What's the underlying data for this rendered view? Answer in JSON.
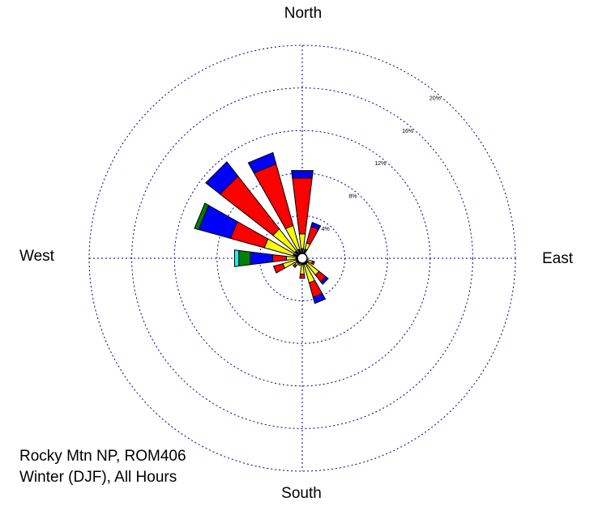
{
  "caption": {
    "station": "Rocky Mtn NP, ROM406",
    "season": "Winter (DJF), All Hours"
  },
  "colors": {
    "grid": "#00008b",
    "outline": "#000000",
    "bins": [
      "#000000",
      "#ffff00",
      "#ff0000",
      "#0000ff",
      "#008000",
      "#00ffff"
    ]
  },
  "chart_data": {
    "type": "windrose",
    "direction_labels": {
      "north": "North",
      "east": "East",
      "south": "South",
      "west": "West"
    },
    "rings": [
      {
        "value": 4,
        "label": "4%"
      },
      {
        "value": 8,
        "label": "8%"
      },
      {
        "value": 12,
        "label": "12%"
      },
      {
        "value": 16,
        "label": "16%"
      },
      {
        "value": 20,
        "label": "20%"
      }
    ],
    "rmax": 20,
    "calm_circle": true,
    "sectors": [
      {
        "direction": 0,
        "segments": [
          0.9,
          1.4,
          5.3,
          0.7
        ]
      },
      {
        "direction": 22.5,
        "segments": [
          0.9,
          0.6,
          1.6,
          0.4
        ]
      },
      {
        "direction": 112.5,
        "segments": [
          0.5,
          0.5,
          0.2
        ]
      },
      {
        "direction": 135,
        "segments": [
          0.6,
          1.4,
          0.8,
          0.3
        ]
      },
      {
        "direction": 157.5,
        "segments": [
          0.6,
          1.8,
          1.4,
          0.6
        ]
      },
      {
        "direction": 180,
        "segments": [
          0.6,
          0.9,
          0.4
        ]
      },
      {
        "direction": 202.5,
        "segments": [
          0.5,
          0.2
        ]
      },
      {
        "direction": 225,
        "segments": [
          0.6,
          0.3,
          0.2
        ]
      },
      {
        "direction": 247.5,
        "segments": [
          0.6,
          1.3,
          0.9
        ]
      },
      {
        "direction": 270,
        "segments": [
          0.6,
          0.9,
          1.3,
          2.1,
          1.1,
          0.4
        ]
      },
      {
        "direction": 292.5,
        "segments": [
          0.9,
          2.8,
          3.3,
          3.1,
          0.4
        ]
      },
      {
        "direction": 315,
        "segments": [
          0.9,
          2.6,
          6.3,
          1.7
        ]
      },
      {
        "direction": 337.5,
        "segments": [
          0.9,
          2.3,
          6.0,
          1.1
        ]
      }
    ]
  }
}
